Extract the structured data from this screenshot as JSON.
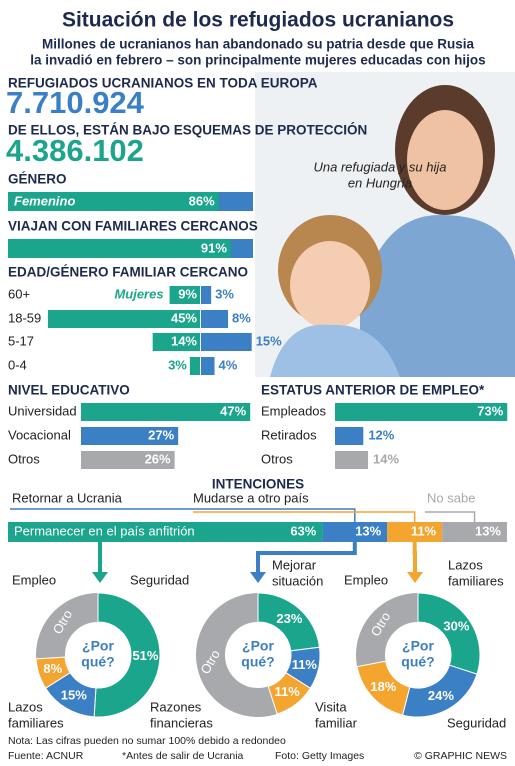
{
  "title": "Situación de los refugiados ucranianos",
  "subtitle": [
    "Millones de ucranianos han abandonado su patria desde que Rusia",
    "la invadió en febrero – son principalmente mujeres educadas con hijos"
  ],
  "totals": [
    {
      "label": "REFUGIADOS UCRANIANOS EN TODA EUROPA",
      "value": "7.710.924"
    },
    {
      "label": "DE ELLOS,  ESTÁN BAJO ESQUEMAS DE PROTECCIÓN",
      "value": "4.386.102"
    }
  ],
  "photo_caption": [
    "Una refugiada y su hija",
    "en Hungría"
  ],
  "gender": {
    "title": "GÉNERO",
    "categories": [
      "Femenino"
    ],
    "values": [
      86
    ],
    "value_labels": [
      "86%"
    ]
  },
  "family": {
    "title": "VIAJAN CON FAMILIARES CERCANOS",
    "values": [
      91
    ],
    "value_labels": [
      "91%"
    ]
  },
  "age_gender": {
    "title": "EDAD/GÉNERO FAMILIAR CERCANO",
    "categories": [
      "60+",
      "18-59",
      "5-17",
      "0-4"
    ],
    "series": [
      {
        "name": "Mujeres",
        "values": [
          9,
          45,
          14,
          3
        ],
        "value_labels": [
          "9%",
          "45%",
          "14%",
          "3%"
        ]
      },
      {
        "values": [
          3,
          8,
          15,
          4
        ],
        "value_labels": [
          "3%",
          "8%",
          "15%",
          "4%"
        ]
      }
    ]
  },
  "education": {
    "title": "NIVEL EDUCATIVO",
    "categories": [
      "Universidad",
      "Vocacional",
      "Otros"
    ],
    "values": [
      47,
      27,
      26
    ],
    "value_labels": [
      "47%",
      "27%",
      "26%"
    ]
  },
  "employment": {
    "title": "ESTATUS ANTERIOR DE EMPLEO*",
    "categories": [
      "Empleados",
      "Retirados",
      "Otros"
    ],
    "values": [
      73,
      12,
      14
    ],
    "value_labels": [
      "73%",
      "12%",
      "14%"
    ]
  },
  "intentions": {
    "title": "INTENCIONES",
    "categories": [
      "Permanecer en el país anfitrión",
      "Retornar a Ucrania",
      "Mudarse a otro país",
      "No sabe"
    ],
    "values": [
      63,
      13,
      11,
      13
    ],
    "value_labels": [
      "63%",
      "13%",
      "11%",
      "13%"
    ]
  },
  "reasons": [
    {
      "categories": [
        [
          "Seguridad"
        ],
        [
          "Lazos",
          "familiares"
        ],
        [
          "Empleo"
        ]
      ],
      "values": [
        51,
        15,
        8
      ],
      "value_labels": [
        "51%",
        "15%",
        "8%"
      ],
      "other": "Otro",
      "center": [
        "¿Por",
        "qué?"
      ]
    },
    {
      "categories": [
        [
          "Mejorar",
          "situación"
        ],
        [
          "Visita",
          "familiar"
        ],
        [
          "Razones",
          "financieras"
        ]
      ],
      "values": [
        23,
        11,
        11
      ],
      "value_labels": [
        "23%",
        "11%",
        "11%"
      ],
      "other": "Otro",
      "center": [
        "¿Por",
        "qué?"
      ]
    },
    {
      "categories": [
        [
          "Lazos",
          "familiares"
        ],
        [
          "Seguridad"
        ],
        [
          "Empleo"
        ]
      ],
      "values": [
        30,
        24,
        18
      ],
      "value_labels": [
        "30%",
        "24%",
        "18%"
      ],
      "other": "Otro",
      "center": [
        "¿Por",
        "qué?"
      ]
    }
  ],
  "notes": {
    "note": "Nota: Las cifras pueden no sumar 100% debido a redondeo",
    "source": "Fuente: ACNUR",
    "asterisk": "*Antes de salir de Ucrania",
    "photo": "Foto: Getty Images",
    "credit": "© GRAPHIC NEWS"
  },
  "watermark": "GRAPHIC NEWS"
}
